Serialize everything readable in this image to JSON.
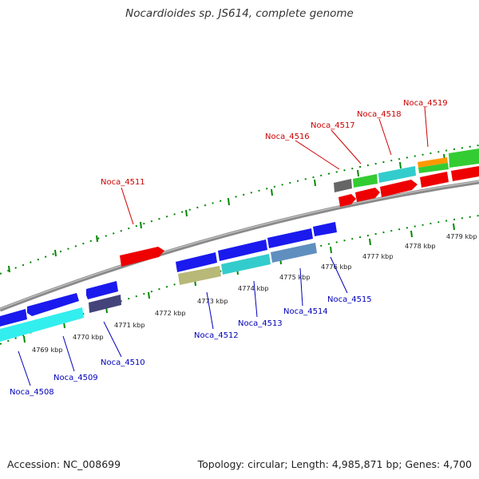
{
  "title": "Nocardioides sp. JS614, complete genome",
  "footer": {
    "accession": "Accession: NC_008699",
    "summary": "Topology: circular; Length: 4,985,871 bp; Genes: 4,700"
  },
  "colors": {
    "forward_label": "#cc0000",
    "reverse_label": "#0000bb",
    "backbone": "#888888",
    "ticks": "#008800"
  },
  "ticks": [
    {
      "label": "4769 kbp"
    },
    {
      "label": "4770 kbp"
    },
    {
      "label": "4771 kbp"
    },
    {
      "label": "4772 kbp"
    },
    {
      "label": "4773 kbp"
    },
    {
      "label": "4774 kbp"
    },
    {
      "label": "4775 kbp"
    },
    {
      "label": "4776 kbp"
    },
    {
      "label": "4777 kbp"
    },
    {
      "label": "4778 kbp"
    },
    {
      "label": "4779 kbp"
    }
  ],
  "forward_genes": [
    {
      "label": "Noca_4511"
    },
    {
      "label": "Noca_4516"
    },
    {
      "label": "Noca_4517"
    },
    {
      "label": "Noca_4518"
    },
    {
      "label": "Noca_4519"
    }
  ],
  "reverse_genes": [
    {
      "label": "Noca_4508"
    },
    {
      "label": "Noca_4509"
    },
    {
      "label": "Noca_4510"
    },
    {
      "label": "Noca_4512"
    },
    {
      "label": "Noca_4513"
    },
    {
      "label": "Noca_4514"
    },
    {
      "label": "Noca_4515"
    }
  ]
}
